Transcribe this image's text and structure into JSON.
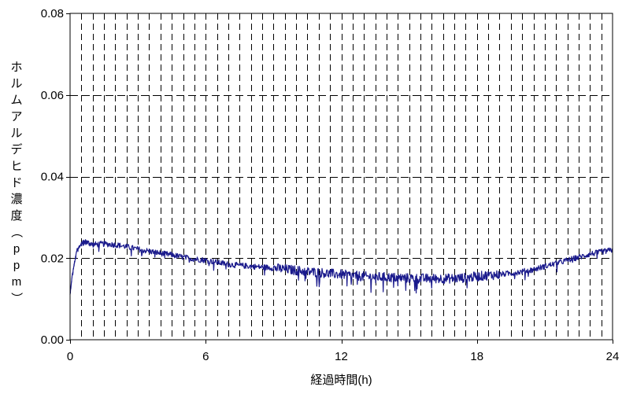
{
  "chart_data": {
    "type": "line",
    "title": "",
    "xlabel": "経過時間(h)",
    "ylabel": "ホルムアルデヒド濃度（ppm）",
    "xlim": [
      0,
      24
    ],
    "ylim": [
      0,
      0.08
    ],
    "x_ticks": [
      0,
      6,
      12,
      18,
      24
    ],
    "x_tick_labels": [
      "0",
      "6",
      "12",
      "18",
      "24"
    ],
    "y_ticks": [
      0,
      0.02,
      0.04,
      0.06,
      0.08
    ],
    "y_tick_labels": [
      "0.00",
      "0.02",
      "0.04",
      "0.06",
      "0.08"
    ],
    "vertical_grid_interval_h": 0.5,
    "grid": true,
    "legend": false,
    "series": [
      {
        "color": "#1a1a8c",
        "x": [
          0,
          0.1,
          0.2,
          0.3,
          0.5,
          0.7,
          1,
          1.5,
          2,
          2.5,
          3,
          3.5,
          4,
          4.5,
          5,
          5.5,
          6,
          6.5,
          7,
          7.5,
          8,
          8.5,
          9,
          9.5,
          10,
          10.5,
          11,
          11.5,
          12,
          12.5,
          13,
          13.5,
          14,
          14.5,
          15,
          15.5,
          16,
          16.5,
          17,
          17.5,
          18,
          18.5,
          19,
          19.5,
          20,
          20.5,
          21,
          21.5,
          22,
          22.5,
          23,
          23.5,
          24
        ],
        "y": [
          0.011,
          0.016,
          0.019,
          0.022,
          0.0235,
          0.024,
          0.0233,
          0.0235,
          0.0233,
          0.0228,
          0.0222,
          0.0217,
          0.0212,
          0.0208,
          0.0202,
          0.0198,
          0.0195,
          0.019,
          0.0185,
          0.0182,
          0.018,
          0.0178,
          0.0176,
          0.0173,
          0.017,
          0.0167,
          0.0165,
          0.0162,
          0.016,
          0.0157,
          0.0155,
          0.0154,
          0.0153,
          0.0152,
          0.0151,
          0.015,
          0.015,
          0.015,
          0.015,
          0.0152,
          0.0155,
          0.0158,
          0.016,
          0.0163,
          0.0167,
          0.0172,
          0.018,
          0.0187,
          0.0195,
          0.0202,
          0.021,
          0.0215,
          0.022
        ]
      }
    ]
  }
}
